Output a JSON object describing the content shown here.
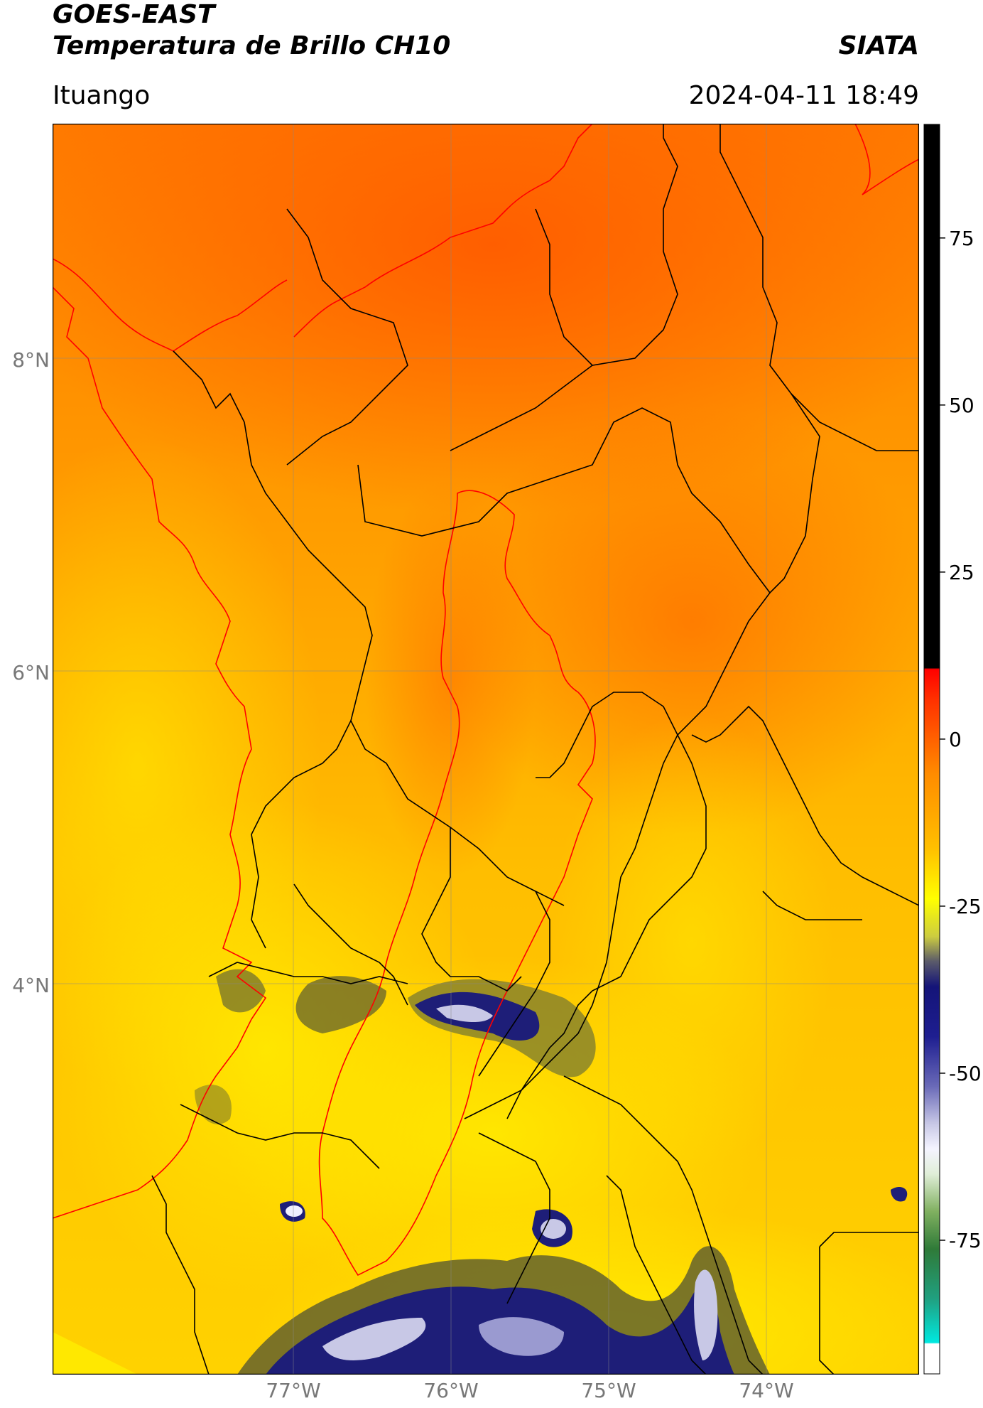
{
  "title": {
    "satellite": "GOES-EAST",
    "product": "Temperatura de Brillo CH10",
    "brand": "SIATA",
    "location": "Ituango",
    "datetime": "2024-04-11 18:49"
  },
  "map": {
    "lon_range": [
      -78.5,
      -73.0
    ],
    "lat_range": [
      1.75,
      9.75
    ],
    "lat_ticks": [
      {
        "label": "8°N",
        "value": 8
      },
      {
        "label": "6°N",
        "value": 6
      },
      {
        "label": "4°N",
        "value": 4
      }
    ],
    "lon_ticks": [
      {
        "label": "77°W",
        "value": -77
      },
      {
        "label": "76°W",
        "value": -76
      },
      {
        "label": "75°W",
        "value": -75
      },
      {
        "label": "74°W",
        "value": -74
      }
    ],
    "gridlines": true,
    "colors": {
      "warm": "#ff6a00",
      "mid": "#ffb000",
      "cool": "#ffe800",
      "cold": "#1a1a80",
      "coldest": "#d8d8ec",
      "border": "#000000",
      "coast": "#ff0000"
    }
  },
  "colorbar": {
    "range": [
      -95,
      92
    ],
    "ticks": [
      "75",
      "50",
      "25",
      "0",
      "-25",
      "-50",
      "-75"
    ],
    "tick_values": [
      75,
      50,
      25,
      0,
      -25,
      -50,
      -75
    ]
  }
}
